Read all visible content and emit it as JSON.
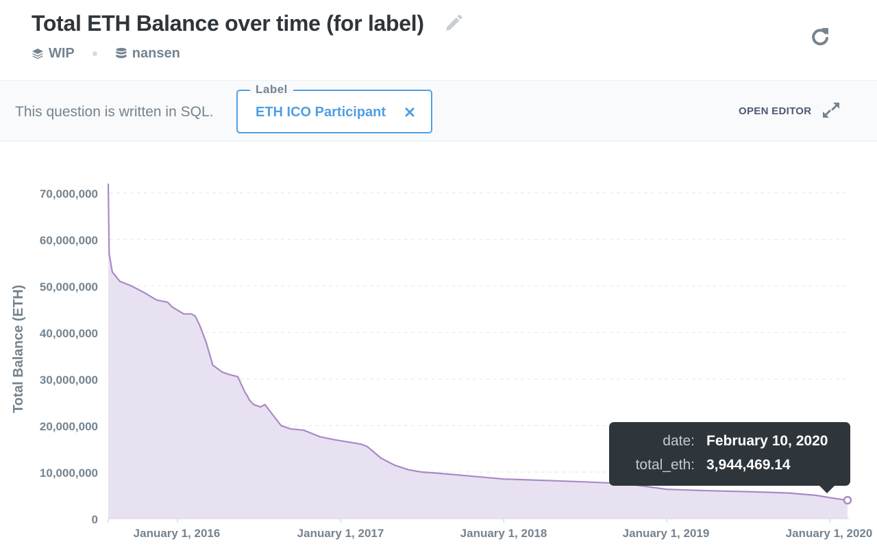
{
  "header": {
    "title": "Total ETH Balance over time (for label)",
    "collection": "WIP",
    "database": "nansen",
    "icons": {
      "edit": "pencil-icon",
      "collection": "layers-icon",
      "database": "database-icon",
      "refresh": "refresh-icon"
    }
  },
  "params": {
    "note": "This question is written in SQL.",
    "label_field": {
      "legend": "Label",
      "value": "ETH ICO Participant"
    },
    "open_editor": "OPEN EDITOR",
    "icons": {
      "clear": "close-icon",
      "expand": "expand-icon"
    }
  },
  "tooltip": {
    "date_key": "date:",
    "date_value": "February 10, 2020",
    "total_key": "total_eth:",
    "total_value": "3,944,469.14"
  },
  "colors": {
    "accent": "#509ee3",
    "series_line": "#a989c5",
    "series_fill": "#e3dcee",
    "text_muted": "#74838f",
    "tooltip_bg": "#2e353b"
  },
  "chart_data": {
    "type": "area",
    "ylabel": "Total Balance (ETH)",
    "xlabel": "",
    "x_ticks": [
      "January 1, 2016",
      "January 1, 2017",
      "January 1, 2018",
      "January 1, 2019",
      "January 1, 2020"
    ],
    "y_ticks": [
      "0",
      "10,000,000",
      "20,000,000",
      "30,000,000",
      "40,000,000",
      "50,000,000",
      "60,000,000",
      "70,000,000"
    ],
    "xlim": [
      "2015-07-30",
      "2020-02-10"
    ],
    "ylim": [
      0,
      70000000
    ],
    "grid": true,
    "series": [
      {
        "x": [
          "2015-07-30",
          "2015-08-01",
          "2015-08-08",
          "2015-08-25",
          "2015-09-20",
          "2015-10-20",
          "2015-11-15",
          "2015-12-10",
          "2015-12-20",
          "2016-01-15",
          "2016-02-01",
          "2016-02-10",
          "2016-02-20",
          "2016-03-05",
          "2016-03-20",
          "2016-04-10",
          "2016-04-25",
          "2016-05-15",
          "2016-06-01",
          "2016-06-05",
          "2016-06-10",
          "2016-06-20",
          "2016-07-05",
          "2016-07-15",
          "2016-08-20",
          "2016-09-10",
          "2016-10-10",
          "2016-11-15",
          "2016-12-15",
          "2017-01-15",
          "2017-02-15",
          "2017-03-01",
          "2017-04-01",
          "2017-05-01",
          "2017-06-01",
          "2017-07-01",
          "2017-08-01",
          "2017-10-01",
          "2018-01-01",
          "2018-04-01",
          "2018-07-01",
          "2018-10-01",
          "2019-01-01",
          "2019-04-01",
          "2019-07-01",
          "2019-10-01",
          "2019-12-01",
          "2020-01-15",
          "2020-02-10"
        ],
        "y": [
          72000000,
          57000000,
          53000000,
          51000000,
          50000000,
          48500000,
          47000000,
          46500000,
          45500000,
          44000000,
          44000000,
          43500000,
          41500000,
          38000000,
          33000000,
          31500000,
          31000000,
          30500000,
          27000000,
          26500000,
          25500000,
          24500000,
          24000000,
          24500000,
          20000000,
          19300000,
          19000000,
          17600000,
          17000000,
          16500000,
          16000000,
          15500000,
          13000000,
          11500000,
          10500000,
          10000000,
          9800000,
          9300000,
          8500000,
          8200000,
          7900000,
          7500000,
          6300000,
          6000000,
          5800000,
          5500000,
          5000000,
          4300000,
          3944469.14
        ]
      }
    ]
  }
}
